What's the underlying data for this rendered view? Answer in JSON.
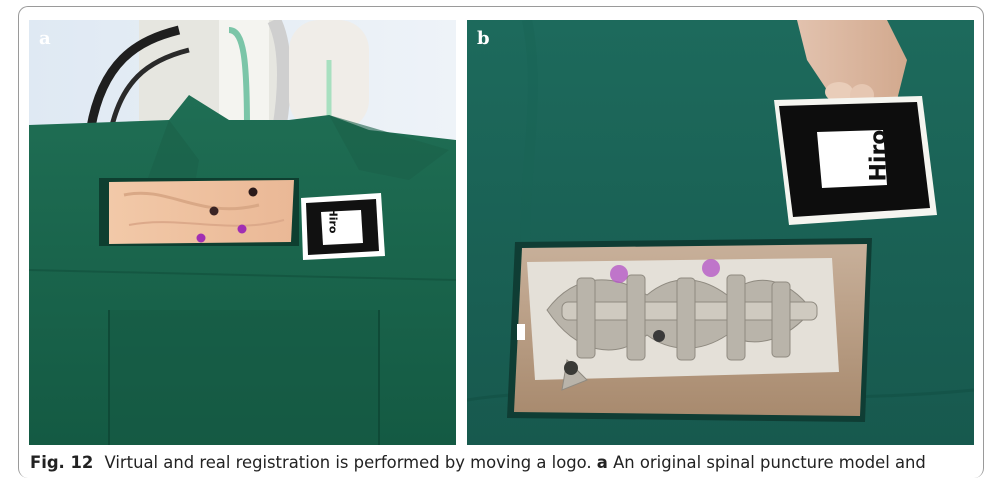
{
  "figure": {
    "panel_a": {
      "label": "a",
      "marker_text": "Hiro"
    },
    "panel_b": {
      "label": "b",
      "marker_text": "Hiro"
    },
    "caption": {
      "figure_number": "Fig. 12",
      "text": "Virtual and real registration is performed by moving a logo.",
      "sub_label": "a",
      "sub_text": "An original spinal puncture model and"
    }
  }
}
